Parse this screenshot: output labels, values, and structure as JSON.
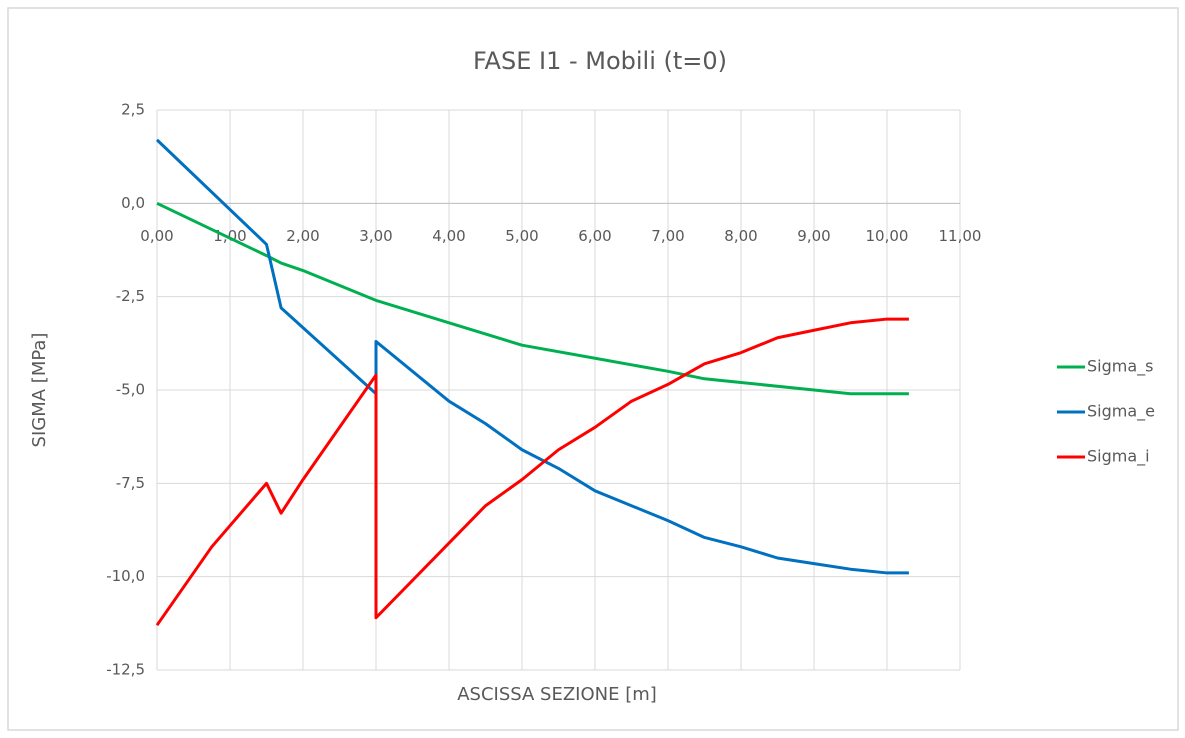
{
  "chart_data": {
    "type": "line",
    "title": "FASE I1 - Mobili (t=0)",
    "xlabel": "ASCISSA SEZIONE [m]",
    "ylabel": "SIGMA [MPa]",
    "xlim": [
      0,
      11
    ],
    "xticks": [
      {
        "value": 0,
        "label": "0,00"
      },
      {
        "value": 1,
        "label": "1,00"
      },
      {
        "value": 2,
        "label": "2,00"
      },
      {
        "value": 3,
        "label": "3,00"
      },
      {
        "value": 4,
        "label": "4,00"
      },
      {
        "value": 5,
        "label": "5,00"
      },
      {
        "value": 6,
        "label": "6,00"
      },
      {
        "value": 7,
        "label": "7,00"
      },
      {
        "value": 8,
        "label": "8,00"
      },
      {
        "value": 9,
        "label": "9,00"
      },
      {
        "value": 10,
        "label": "10,00"
      },
      {
        "value": 11,
        "label": "11,00"
      }
    ],
    "ylim": [
      -12.5,
      2.5
    ],
    "yticks": [
      {
        "value": 2.5,
        "label": "2,5"
      },
      {
        "value": 0,
        "label": "0,0"
      },
      {
        "value": -2.5,
        "label": "-2,5"
      },
      {
        "value": -5,
        "label": "-5,0"
      },
      {
        "value": -7.5,
        "label": "-7,5"
      },
      {
        "value": -10,
        "label": "-10,0"
      },
      {
        "value": -12.5,
        "label": "-12,5"
      }
    ],
    "grid": true,
    "legend": "right",
    "series": [
      {
        "name": "Sigma_s",
        "color": "#00b050",
        "x": [
          0,
          1.5,
          1.7,
          2,
          3,
          4,
          5,
          6,
          7,
          7.5,
          8,
          9,
          9.5,
          10,
          10.3
        ],
        "values": [
          0,
          -1.4,
          -1.6,
          -1.8,
          -2.6,
          -3.2,
          -3.8,
          -4.15,
          -4.5,
          -4.7,
          -4.8,
          -5.0,
          -5.1,
          -5.1,
          -5.1
        ]
      },
      {
        "name": "Sigma_e",
        "color": "#0070c0",
        "x": [
          0,
          1.5,
          1.7,
          3,
          3,
          4,
          4.5,
          5,
          5.5,
          6,
          7,
          7.5,
          8,
          8.5,
          9,
          9.5,
          10,
          10.3
        ],
        "values": [
          1.7,
          -1.1,
          -2.8,
          -5.1,
          -3.7,
          -5.3,
          -5.9,
          -6.6,
          -7.1,
          -7.7,
          -8.5,
          -8.95,
          -9.2,
          -9.5,
          -9.65,
          -9.8,
          -9.9,
          -9.9
        ]
      },
      {
        "name": "Sigma_i",
        "color": "#ff0000",
        "x": [
          0,
          0.75,
          1.5,
          1.7,
          2,
          3,
          3,
          4,
          4.5,
          5,
          5.5,
          6,
          6.5,
          7,
          7.5,
          8,
          8.5,
          9,
          9.5,
          10,
          10.3
        ],
        "values": [
          -11.3,
          -9.2,
          -7.5,
          -8.3,
          -7.4,
          -4.6,
          -11.1,
          -9.1,
          -8.1,
          -7.4,
          -6.6,
          -6.0,
          -5.3,
          -4.85,
          -4.3,
          -4.0,
          -3.6,
          -3.4,
          -3.2,
          -3.1,
          -3.1
        ]
      }
    ]
  }
}
